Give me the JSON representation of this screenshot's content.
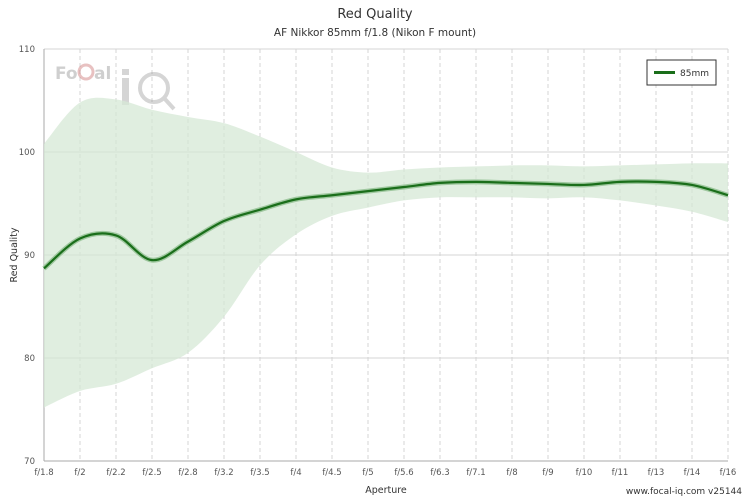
{
  "chart_data": {
    "type": "line",
    "title": "Red Quality",
    "subtitle": "AF Nikkor 85mm f/1.8 (Nikon F mount)",
    "xlabel": "Aperture",
    "ylabel": "Red Quality",
    "categories": [
      "f/1.8",
      "f/2",
      "f/2.2",
      "f/2.5",
      "f/2.8",
      "f/3.2",
      "f/3.5",
      "f/4",
      "f/4.5",
      "f/5",
      "f/5.6",
      "f/6.3",
      "f/7.1",
      "f/8",
      "f/9",
      "f/10",
      "f/11",
      "f/13",
      "f/14",
      "f/16"
    ],
    "ylim": [
      70,
      110
    ],
    "yticks": [
      70,
      80,
      90,
      100,
      110
    ],
    "grid": true,
    "legend_position": "top-right",
    "series": [
      {
        "name": "85mm",
        "color": "#1a6e1a",
        "values": [
          88.7,
          91.6,
          91.9,
          89.5,
          91.3,
          93.3,
          94.4,
          95.4,
          95.8,
          96.2,
          96.6,
          97.0,
          97.1,
          97.0,
          96.9,
          96.8,
          97.1,
          97.1,
          96.8,
          95.8
        ],
        "band_upper": [
          100.8,
          104.8,
          105.1,
          104.1,
          103.4,
          102.8,
          101.5,
          100.0,
          98.5,
          98.0,
          98.3,
          98.5,
          98.6,
          98.7,
          98.7,
          98.6,
          98.7,
          98.8,
          98.9,
          98.9
        ],
        "band_lower": [
          75.2,
          76.8,
          77.5,
          79.0,
          80.5,
          84.0,
          89.0,
          92.0,
          93.8,
          94.6,
          95.3,
          95.6,
          95.6,
          95.6,
          95.5,
          95.6,
          95.3,
          94.8,
          94.2,
          93.2
        ],
        "band_color": "#d6e8d6"
      }
    ]
  },
  "watermark": {
    "text_focal": "Focal",
    "text_iq": "iQ"
  },
  "footer": "www.focal-iq.com  v25144"
}
